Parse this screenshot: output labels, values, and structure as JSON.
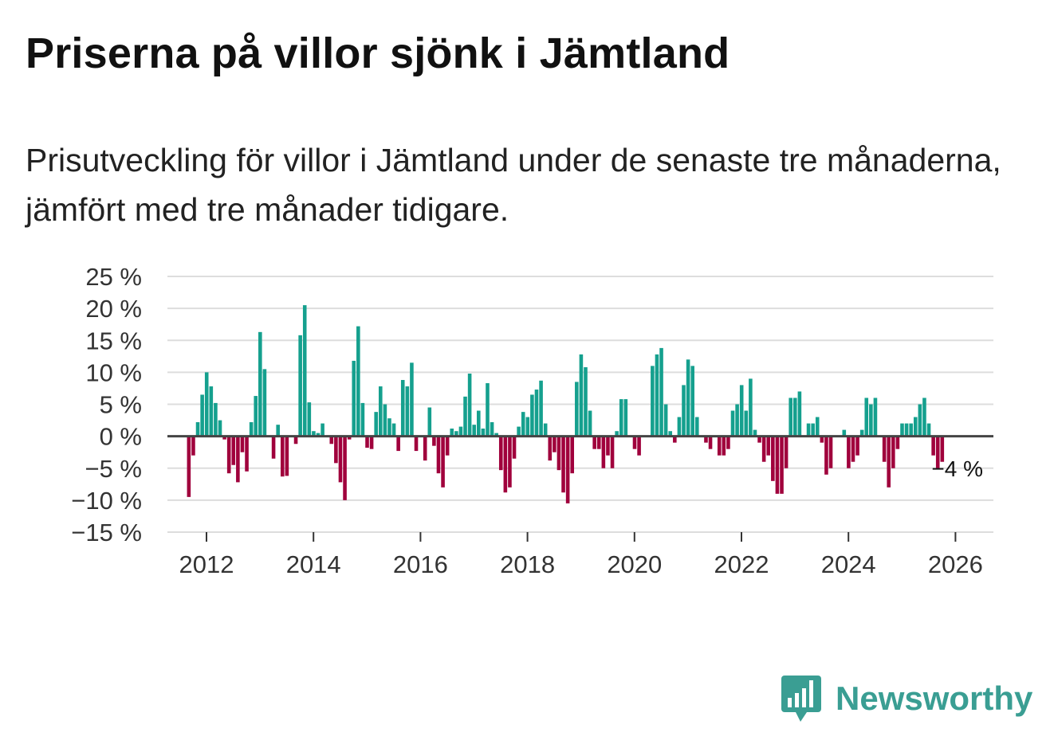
{
  "title": "Priserna på villor sjönk i Jämtland",
  "subtitle": "Prisutveckling för villor i Jämtland under de senaste tre månaderna, jämfört med tre månader tidigare.",
  "brand": {
    "name": "Newsworthy",
    "color": "#3a9e93"
  },
  "colors": {
    "positive": "#15a08e",
    "negative": "#a0003c",
    "zero_line": "#444444",
    "grid": "#dddddd"
  },
  "chart_data": {
    "type": "bar",
    "title": "Priserna på villor sjönk i Jämtland",
    "xlabel": "",
    "ylabel": "",
    "ylim": [
      -15,
      25
    ],
    "yticks": [
      25,
      20,
      15,
      10,
      5,
      0,
      -5,
      -10,
      -15
    ],
    "ytick_labels": [
      "25 %",
      "20 %",
      "15 %",
      "10 %",
      "5 %",
      "0 %",
      "−5 %",
      "−10 %",
      "−15 %"
    ],
    "xticks": [
      "2012",
      "2014",
      "2016",
      "2018",
      "2020",
      "2022",
      "2024",
      "2026"
    ],
    "x_start_year": 2011.67,
    "x_step_years": 0.08333,
    "end_label": "−4 %",
    "values": [
      -9.5,
      -3,
      2.2,
      6.5,
      10,
      7.8,
      5.2,
      2.5,
      -0.5,
      -5.8,
      -4.5,
      -7.2,
      -2.5,
      -5.5,
      2.2,
      6.3,
      16.3,
      10.5,
      0,
      -3.5,
      1.8,
      -6.3,
      -6.2,
      0,
      -1.2,
      15.8,
      20.5,
      5.3,
      0.8,
      0.5,
      2,
      0,
      -1.2,
      -4.2,
      -7.2,
      -10,
      -0.5,
      11.8,
      17.2,
      5.2,
      -1.8,
      -2,
      3.8,
      7.8,
      5,
      2.8,
      2,
      -2.3,
      8.8,
      7.8,
      11.5,
      -2.3,
      0,
      -3.8,
      4.5,
      -1.5,
      -5.8,
      -8,
      -3,
      1.2,
      0.8,
      1.5,
      6.2,
      9.8,
      1.8,
      4,
      1.2,
      8.3,
      2.2,
      0.5,
      -5.3,
      -8.8,
      -8,
      -3.5,
      1.5,
      3.8,
      3,
      6.5,
      7.3,
      8.7,
      2,
      -3.8,
      -2.5,
      -5.3,
      -8.8,
      -10.5,
      -5.8,
      8.5,
      12.8,
      10.8,
      4,
      -2,
      -2,
      -5,
      -3,
      -5,
      0.8,
      5.8,
      5.8,
      0,
      -2,
      -3,
      0,
      0,
      11,
      12.8,
      13.8,
      5,
      0.8,
      -1,
      3,
      8,
      12,
      11,
      3,
      0,
      -1,
      -2,
      0,
      -3,
      -3,
      -2,
      4,
      5,
      8,
      4,
      9,
      1,
      -1,
      -4,
      -3,
      -7,
      -9,
      -9,
      -5,
      6,
      6,
      7,
      0,
      2,
      2,
      3,
      -1,
      -6,
      -5,
      0,
      0,
      1,
      -5,
      -4,
      -3,
      1,
      6,
      5,
      6,
      0,
      -4,
      -8,
      -5,
      -2,
      2,
      2,
      2,
      3,
      5,
      6,
      2,
      -3,
      -5,
      -4
    ]
  }
}
